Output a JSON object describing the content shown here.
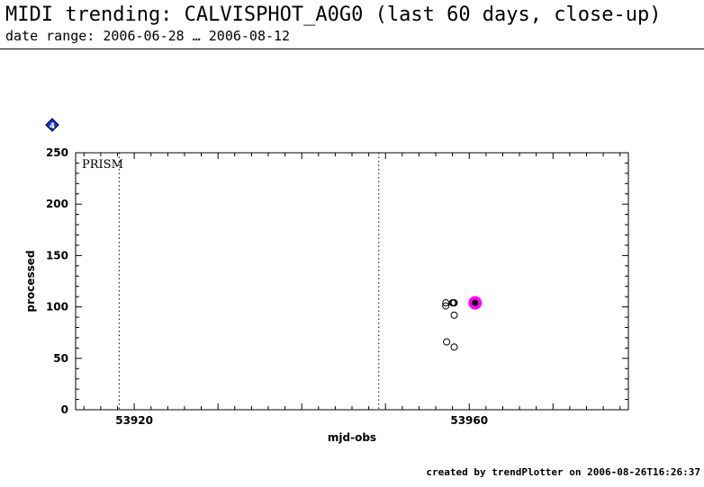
{
  "header": {
    "title": "MIDI trending: CALVISPHOT_A0G0 (last 60 days, close-up)",
    "subtitle": "date range: 2006-06-28 … 2006-08-12"
  },
  "badge": {
    "label": "4",
    "color": "#1533e6"
  },
  "footer": {
    "text": "created by trendPlotter on 2006-08-26T16:26:37"
  },
  "colors": {
    "highlight": "#ff00ff",
    "axis": "#000000"
  },
  "chart_data": {
    "type": "scatter",
    "xlabel": "mjd-obs",
    "ylabel": "processed",
    "xlim": [
      53913,
      53979
    ],
    "ylim": [
      0,
      250
    ],
    "x_ticks": [
      53920,
      53960
    ],
    "y_ticks": [
      0,
      50,
      100,
      150,
      200,
      250
    ],
    "grid": false,
    "annotation": "PRISM",
    "vlines": [
      53918.2,
      53949.2
    ],
    "series": [
      {
        "marker": "open-circle",
        "points": [
          {
            "x": 53957.2,
            "y": 104
          },
          {
            "x": 53957.2,
            "y": 101
          },
          {
            "x": 53957.3,
            "y": 66
          },
          {
            "x": 53958.0,
            "y": 104
          },
          {
            "x": 53958.1,
            "y": 104
          },
          {
            "x": 53958.2,
            "y": 104
          },
          {
            "x": 53958.2,
            "y": 92
          },
          {
            "x": 53958.2,
            "y": 61
          },
          {
            "x": 53960.6,
            "y": 104
          },
          {
            "x": 53960.7,
            "y": 104
          },
          {
            "x": 53960.8,
            "y": 104
          }
        ]
      },
      {
        "marker": "highlight",
        "points": [
          {
            "x": 53960.7,
            "y": 104
          }
        ]
      }
    ]
  }
}
